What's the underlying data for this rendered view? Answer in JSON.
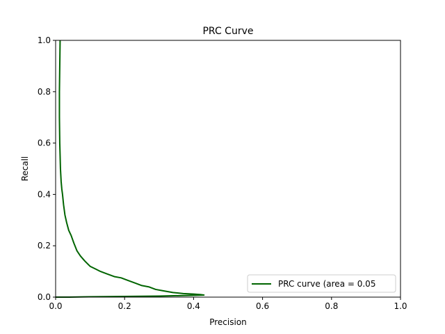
{
  "chart_data": {
    "type": "line",
    "title": "PRC Curve",
    "xlabel": "Precision",
    "ylabel": "Recall",
    "xlim": [
      0.0,
      1.0
    ],
    "ylim": [
      0.0,
      1.0
    ],
    "xticks": [
      "0.0",
      "0.2",
      "0.4",
      "0.6",
      "0.8",
      "1.0"
    ],
    "yticks": [
      "0.0",
      "0.2",
      "0.4",
      "0.6",
      "0.8",
      "1.0"
    ],
    "grid": false,
    "legend_position": "lower-right",
    "series": [
      {
        "name": "PRC curve (area = 0.05",
        "color": "#006400",
        "x": [
          0.013,
          0.012,
          0.011,
          0.011,
          0.012,
          0.013,
          0.014,
          0.016,
          0.018,
          0.02,
          0.023,
          0.027,
          0.032,
          0.038,
          0.045,
          0.053,
          0.062,
          0.072,
          0.085,
          0.1,
          0.115,
          0.13,
          0.15,
          0.17,
          0.19,
          0.21,
          0.23,
          0.25,
          0.27,
          0.29,
          0.31,
          0.34,
          0.37,
          0.4,
          0.42,
          0.43,
          0.3,
          0.15,
          0.08,
          0.04,
          0.02,
          0.0
        ],
        "y": [
          1.0,
          0.9,
          0.8,
          0.7,
          0.6,
          0.55,
          0.5,
          0.45,
          0.42,
          0.4,
          0.36,
          0.32,
          0.29,
          0.26,
          0.24,
          0.21,
          0.18,
          0.16,
          0.14,
          0.12,
          0.11,
          0.1,
          0.09,
          0.08,
          0.075,
          0.065,
          0.055,
          0.045,
          0.04,
          0.03,
          0.025,
          0.018,
          0.014,
          0.012,
          0.01,
          0.008,
          0.004,
          0.002,
          0.001,
          0.0,
          0.0,
          0.0
        ]
      }
    ]
  }
}
